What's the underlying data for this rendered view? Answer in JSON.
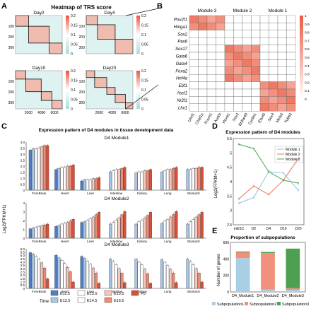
{
  "panel_letters": [
    "A",
    "B",
    "C",
    "D",
    "E"
  ],
  "panelA": {
    "title": "Heatmap of TRS score",
    "colorbar_ticks": [
      "0.2",
      "0.15",
      "0.1",
      "0.05",
      "0"
    ],
    "y_ticks": [
      "100",
      "200",
      "300"
    ],
    "x_ticks": [
      "2000",
      "4000",
      "6000"
    ],
    "subplots": [
      {
        "label": "Day2",
        "blocks": [
          [
            0,
            0.28
          ],
          [
            0.28,
            0.72
          ],
          [
            0.72,
            1.0
          ]
        ]
      },
      {
        "label": "Day4",
        "blocks": [
          [
            0,
            0.24
          ],
          [
            0.24,
            0.62
          ],
          [
            0.62,
            1.0
          ]
        ]
      },
      {
        "label": "Day10",
        "blocks": [
          [
            0,
            0.22
          ],
          [
            0.22,
            0.55
          ],
          [
            0.55,
            0.78
          ],
          [
            0.78,
            1.0
          ]
        ]
      },
      {
        "label": "Day20",
        "blocks": [
          [
            0,
            0.18
          ],
          [
            0.18,
            0.44
          ],
          [
            0.44,
            0.62
          ],
          [
            0.62,
            0.84
          ],
          [
            0.84,
            1.0
          ]
        ]
      }
    ]
  },
  "panelB": {
    "modules": [
      "Module 3",
      "Module 2",
      "Module 1"
    ],
    "rows": [
      "Pou2f1",
      "Hmga1",
      "Sox2",
      "Pax6",
      "Sox17",
      "Gata6",
      "Gata4",
      "Foxa2",
      "Hnf4a",
      "Ebf1",
      "Ascl1",
      "Nr2f1",
      "Lhx1"
    ],
    "cols": [
      "Uhrf1",
      "Chaf1a",
      "Foxm1",
      "Aurkb",
      "Hoxa1",
      "Sox3",
      "Bhlhe40",
      "Cyclin1",
      "Elavl3",
      "Sox4",
      "Meis3",
      "Tubb3"
    ],
    "colorbar_ticks": [
      "1",
      "0.9",
      "0.8",
      "0.7",
      "0.6",
      "0.5",
      "0.4",
      "0.3",
      "0.2",
      "0.1",
      "0"
    ]
  },
  "panelC": {
    "title": "Expression pattern of D4 modules in tissue development data",
    "ylabel": "Log2(FPKM+1)",
    "tissues": [
      "ForeBrain",
      "Heart",
      "Liver",
      "Intestine",
      "Kidney",
      "Lung",
      "Stomach"
    ],
    "legend_title": "Time",
    "legend": [
      {
        "label": "E11.5",
        "color": "#4f7fc4"
      },
      {
        "label": "E12.5",
        "color": "#a9c6e8"
      },
      {
        "label": "E13.5",
        "color": "#ffffff"
      },
      {
        "label": "E14.5",
        "color": "#ffffff"
      },
      {
        "label": "E15.5",
        "color": "#f6c7bb"
      },
      {
        "label": "E16.5",
        "color": "#f08b74"
      },
      {
        "label": "P0",
        "color": "#d9503a"
      }
    ]
  },
  "panelD": {
    "title": "Expression pattern of D4 modules",
    "ylabel": "Log2(FPKM+1)"
  },
  "panelE": {
    "title": "Proportion of subpopulations",
    "ylabel": "Number of genes"
  },
  "chart_data": [
    {
      "type": "bar",
      "title": "D4 Module1",
      "categories": [
        "ForeBrain",
        "Heart",
        "Liver",
        "Intestine",
        "Kidney",
        "Lung",
        "Stomach"
      ],
      "ylim": [
        0,
        4.2
      ],
      "yticks": [
        "4.0",
        "3.5",
        "3.0",
        "2.5",
        "2.0",
        "1.5",
        "1.0",
        "0.5",
        "0"
      ],
      "series": [
        {
          "name": "E11.5",
          "values": [
            3.5,
            1.8,
            0.8,
            null,
            null,
            null,
            null
          ]
        },
        {
          "name": "E12.5",
          "values": [
            3.6,
            1.9,
            0.9,
            1.6,
            1.5,
            1.6,
            1.8
          ]
        },
        {
          "name": "E13.5",
          "values": [
            3.6,
            2.0,
            0.9,
            1.7,
            1.6,
            1.7,
            1.8
          ]
        },
        {
          "name": "E14.5",
          "values": [
            3.7,
            2.0,
            0.9,
            1.8,
            1.6,
            1.8,
            1.9
          ]
        },
        {
          "name": "E15.5",
          "values": [
            3.8,
            2.1,
            1.0,
            1.8,
            1.7,
            1.8,
            1.9
          ]
        },
        {
          "name": "E16.5",
          "values": [
            3.9,
            2.1,
            1.0,
            1.9,
            1.7,
            1.9,
            2.0
          ]
        },
        {
          "name": "P0",
          "values": [
            3.9,
            2.2,
            1.1,
            2.0,
            1.8,
            2.0,
            2.0
          ]
        }
      ]
    },
    {
      "type": "bar",
      "title": "D4 Module2",
      "categories": [
        "ForeBrain",
        "Heart",
        "Liver",
        "Intestine",
        "Kidney",
        "Lung",
        "Stomach"
      ],
      "ylim": [
        0,
        4.5
      ],
      "yticks": [
        "4",
        "3",
        "2",
        "1",
        "0"
      ],
      "series": [
        {
          "name": "E11.5",
          "values": [
            1.2,
            1.5,
            2.0,
            null,
            null,
            null,
            null
          ]
        },
        {
          "name": "E12.5",
          "values": [
            1.3,
            1.6,
            2.1,
            1.8,
            1.8,
            1.9,
            1.8
          ]
        },
        {
          "name": "E13.5",
          "values": [
            1.4,
            1.8,
            2.3,
            2.0,
            2.1,
            2.2,
            2.1
          ]
        },
        {
          "name": "E14.5",
          "values": [
            1.5,
            1.9,
            2.5,
            2.3,
            2.3,
            2.4,
            2.4
          ]
        },
        {
          "name": "E15.5",
          "values": [
            1.6,
            2.0,
            2.7,
            2.6,
            2.6,
            2.7,
            2.7
          ]
        },
        {
          "name": "E16.5",
          "values": [
            1.7,
            2.2,
            3.0,
            3.0,
            2.9,
            3.0,
            3.0
          ]
        },
        {
          "name": "P0",
          "values": [
            1.8,
            2.4,
            3.3,
            3.4,
            3.3,
            3.4,
            3.3
          ]
        }
      ]
    },
    {
      "type": "bar",
      "title": "D4 Module3",
      "categories": [
        "ForeBrain",
        "Heart",
        "Liver",
        "Intestine",
        "Kidney",
        "Lung",
        "Stomach"
      ],
      "ylim": [
        0,
        6.2
      ],
      "yticks": [
        "6.0",
        "5.5",
        "5.0",
        "4.5",
        "4.0",
        "3.5",
        "3.0",
        "2.5",
        "2.0",
        "1.5",
        "1.0",
        "0.5",
        "0"
      ],
      "series": [
        {
          "name": "E11.5",
          "values": [
            5.6,
            5.2,
            5.0,
            null,
            null,
            null,
            null
          ]
        },
        {
          "name": "E12.5",
          "values": [
            5.4,
            4.8,
            4.7,
            4.6,
            4.6,
            4.5,
            4.6
          ]
        },
        {
          "name": "E13.5",
          "values": [
            5.0,
            4.4,
            4.3,
            4.2,
            4.1,
            4.1,
            4.2
          ]
        },
        {
          "name": "E14.5",
          "values": [
            4.6,
            3.9,
            3.8,
            3.7,
            3.7,
            3.6,
            3.7
          ]
        },
        {
          "name": "E15.5",
          "values": [
            4.0,
            3.3,
            3.2,
            3.1,
            3.0,
            3.0,
            3.1
          ]
        },
        {
          "name": "E16.5",
          "values": [
            3.2,
            2.6,
            2.4,
            2.4,
            2.3,
            2.4,
            2.4
          ]
        },
        {
          "name": "P0",
          "values": [
            1.5,
            1.0,
            0.8,
            0.9,
            0.8,
            0.9,
            1.0
          ]
        }
      ]
    },
    {
      "type": "line",
      "title": "Expression pattern of D4 modules",
      "x": [
        "mESC",
        "D2",
        "D4",
        "D10",
        "D20"
      ],
      "ylim": [
        2.5,
        5.5
      ],
      "yticks": [
        "5.5",
        "5",
        "4.5",
        "4",
        "3.5",
        "3",
        "2.5"
      ],
      "legend_position": "top-right",
      "series": [
        {
          "name": "Module 1",
          "color": "#8fc3e6",
          "values": [
            3.25,
            3.45,
            4.35,
            4.3,
            3.7
          ]
        },
        {
          "name": "Module 2",
          "color": "#e8735c",
          "values": [
            3.4,
            3.85,
            3.55,
            4.05,
            4.8
          ]
        },
        {
          "name": "Module 3",
          "color": "#48a84e",
          "values": [
            5.3,
            5.15,
            4.35,
            4.05,
            3.95
          ]
        }
      ]
    },
    {
      "type": "bar",
      "title": "Proportion of subpopulations",
      "categories": [
        "D4_Module1",
        "D4_Module2",
        "D4_Module3"
      ],
      "ylim": [
        0,
        600
      ],
      "yticks": [
        "600",
        "400",
        "200",
        "0"
      ],
      "stacked": true,
      "legend_position": "bottom",
      "series": [
        {
          "name": "Subpopulation1",
          "color": "#a9cfe7",
          "values": [
            410,
            30,
            25
          ]
        },
        {
          "name": "Subpopulation2",
          "color": "#f2907b",
          "values": [
            70,
            440,
            20
          ]
        },
        {
          "name": "Subpopulation3",
          "color": "#4e9f4f",
          "values": [
            10,
            15,
            480
          ]
        }
      ]
    }
  ]
}
